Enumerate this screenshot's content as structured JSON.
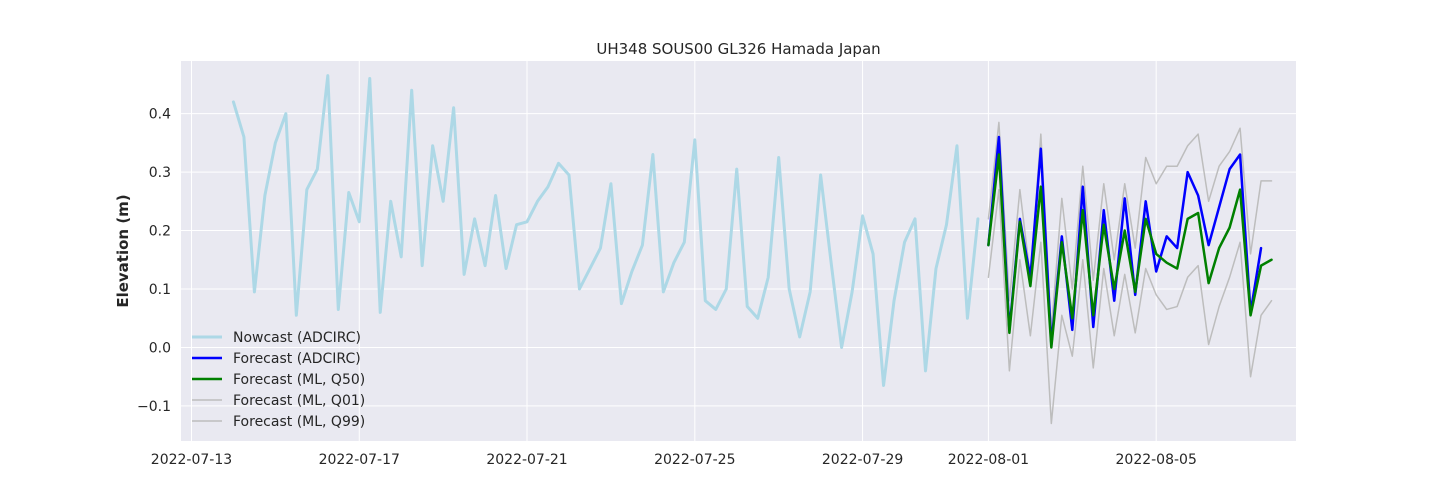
{
  "chart_data": {
    "type": "line",
    "title": "UH348 SOUS00 GL326 Hamada Japan",
    "xlabel": "",
    "ylabel": "Elevation (m)",
    "x_axis": {
      "type": "date",
      "min": "2022-07-12T18:00",
      "max": "2022-08-08T08:00",
      "ticks": [
        "2022-07-13",
        "2022-07-17",
        "2022-07-21",
        "2022-07-25",
        "2022-07-29",
        "2022-08-01",
        "2022-08-05"
      ]
    },
    "y_axis": {
      "min": -0.16,
      "max": 0.49,
      "ticks": [
        "−0.1",
        "0.0",
        "0.1",
        "0.2",
        "0.3",
        "0.4"
      ],
      "tick_values": [
        -0.1,
        0.0,
        0.1,
        0.2,
        0.3,
        0.4
      ]
    },
    "grid": true,
    "legend_position": "lower-left",
    "style": {
      "background": "#e9e9f1",
      "grid_color": "#ffffff",
      "text_color": "#262626"
    },
    "series": [
      {
        "name": "Nowcast (ADCIRC)",
        "color": "#add8e6",
        "line_width": 3,
        "x": [
          "2022-07-14T00:00",
          "2022-07-14T06:00",
          "2022-07-14T12:00",
          "2022-07-14T18:00",
          "2022-07-15T00:00",
          "2022-07-15T06:00",
          "2022-07-15T12:00",
          "2022-07-15T18:00",
          "2022-07-16T00:00",
          "2022-07-16T06:00",
          "2022-07-16T12:00",
          "2022-07-16T18:00",
          "2022-07-17T00:00",
          "2022-07-17T06:00",
          "2022-07-17T12:00",
          "2022-07-17T18:00",
          "2022-07-18T00:00",
          "2022-07-18T06:00",
          "2022-07-18T12:00",
          "2022-07-18T18:00",
          "2022-07-19T00:00",
          "2022-07-19T06:00",
          "2022-07-19T12:00",
          "2022-07-19T18:00",
          "2022-07-20T00:00",
          "2022-07-20T06:00",
          "2022-07-20T12:00",
          "2022-07-20T18:00",
          "2022-07-21T00:00",
          "2022-07-21T06:00",
          "2022-07-21T12:00",
          "2022-07-21T18:00",
          "2022-07-22T00:00",
          "2022-07-22T06:00",
          "2022-07-22T12:00",
          "2022-07-22T18:00",
          "2022-07-23T00:00",
          "2022-07-23T06:00",
          "2022-07-23T12:00",
          "2022-07-23T18:00",
          "2022-07-24T00:00",
          "2022-07-24T06:00",
          "2022-07-24T12:00",
          "2022-07-24T18:00",
          "2022-07-25T00:00",
          "2022-07-25T06:00",
          "2022-07-25T12:00",
          "2022-07-25T18:00",
          "2022-07-26T00:00",
          "2022-07-26T06:00",
          "2022-07-26T12:00",
          "2022-07-26T18:00",
          "2022-07-27T00:00",
          "2022-07-27T06:00",
          "2022-07-27T12:00",
          "2022-07-27T18:00",
          "2022-07-28T00:00",
          "2022-07-28T06:00",
          "2022-07-28T12:00",
          "2022-07-28T18:00",
          "2022-07-29T00:00",
          "2022-07-29T06:00",
          "2022-07-29T12:00",
          "2022-07-29T18:00",
          "2022-07-30T00:00",
          "2022-07-30T06:00",
          "2022-07-30T12:00",
          "2022-07-30T18:00",
          "2022-07-31T00:00",
          "2022-07-31T06:00",
          "2022-07-31T12:00",
          "2022-07-31T18:00"
        ],
        "y": [
          0.42,
          0.36,
          0.095,
          0.26,
          0.35,
          0.4,
          0.055,
          0.27,
          0.305,
          0.465,
          0.065,
          0.265,
          0.215,
          0.46,
          0.06,
          0.25,
          0.155,
          0.44,
          0.14,
          0.345,
          0.25,
          0.41,
          0.125,
          0.22,
          0.14,
          0.26,
          0.135,
          0.21,
          0.215,
          0.25,
          0.275,
          0.315,
          0.295,
          0.1,
          0.135,
          0.17,
          0.28,
          0.075,
          0.13,
          0.175,
          0.33,
          0.095,
          0.145,
          0.18,
          0.355,
          0.08,
          0.065,
          0.1,
          0.305,
          0.07,
          0.05,
          0.12,
          0.325,
          0.1,
          0.018,
          0.095,
          0.295,
          0.145,
          0.0,
          0.095,
          0.225,
          0.16,
          -0.065,
          0.08,
          0.18,
          0.22,
          -0.04,
          0.135,
          0.21,
          0.345,
          0.05,
          0.22
        ]
      },
      {
        "name": "Forecast (ADCIRC)",
        "color": "#0000ff",
        "line_width": 2.5,
        "x": [
          "2022-08-01T00:00",
          "2022-08-01T06:00",
          "2022-08-01T12:00",
          "2022-08-01T18:00",
          "2022-08-02T00:00",
          "2022-08-02T06:00",
          "2022-08-02T12:00",
          "2022-08-02T18:00",
          "2022-08-03T00:00",
          "2022-08-03T06:00",
          "2022-08-03T12:00",
          "2022-08-03T18:00",
          "2022-08-04T00:00",
          "2022-08-04T06:00",
          "2022-08-04T12:00",
          "2022-08-04T18:00",
          "2022-08-05T00:00",
          "2022-08-05T06:00",
          "2022-08-05T12:00",
          "2022-08-05T18:00",
          "2022-08-06T00:00",
          "2022-08-06T06:00",
          "2022-08-06T12:00",
          "2022-08-06T18:00",
          "2022-08-07T00:00",
          "2022-08-07T06:00",
          "2022-08-07T12:00"
        ],
        "y": [
          0.175,
          0.36,
          0.03,
          0.22,
          0.12,
          0.34,
          0.005,
          0.19,
          0.03,
          0.275,
          0.035,
          0.235,
          0.08,
          0.255,
          0.09,
          0.25,
          0.13,
          0.19,
          0.17,
          0.3,
          0.26,
          0.175,
          0.24,
          0.305,
          0.33,
          0.06,
          0.17
        ]
      },
      {
        "name": "Forecast (ML, Q50)",
        "color": "#008000",
        "line_width": 2.5,
        "x": [
          "2022-08-01T00:00",
          "2022-08-01T06:00",
          "2022-08-01T12:00",
          "2022-08-01T18:00",
          "2022-08-02T00:00",
          "2022-08-02T06:00",
          "2022-08-02T12:00",
          "2022-08-02T18:00",
          "2022-08-03T00:00",
          "2022-08-03T06:00",
          "2022-08-03T12:00",
          "2022-08-03T18:00",
          "2022-08-04T00:00",
          "2022-08-04T06:00",
          "2022-08-04T12:00",
          "2022-08-04T18:00",
          "2022-08-05T00:00",
          "2022-08-05T06:00",
          "2022-08-05T12:00",
          "2022-08-05T18:00",
          "2022-08-06T00:00",
          "2022-08-06T06:00",
          "2022-08-06T12:00",
          "2022-08-06T18:00",
          "2022-08-07T00:00",
          "2022-08-07T06:00",
          "2022-08-07T12:00",
          "2022-08-07T18:00"
        ],
        "y": [
          0.175,
          0.33,
          0.025,
          0.215,
          0.105,
          0.275,
          0.0,
          0.18,
          0.05,
          0.235,
          0.055,
          0.21,
          0.1,
          0.2,
          0.095,
          0.22,
          0.16,
          0.145,
          0.135,
          0.22,
          0.23,
          0.11,
          0.17,
          0.205,
          0.27,
          0.055,
          0.14,
          0.15
        ]
      },
      {
        "name": "Forecast (ML, Q01)",
        "color": "#bdbdbd",
        "line_width": 1.5,
        "x": [
          "2022-08-01T00:00",
          "2022-08-01T06:00",
          "2022-08-01T12:00",
          "2022-08-01T18:00",
          "2022-08-02T00:00",
          "2022-08-02T06:00",
          "2022-08-02T12:00",
          "2022-08-02T18:00",
          "2022-08-03T00:00",
          "2022-08-03T06:00",
          "2022-08-03T12:00",
          "2022-08-03T18:00",
          "2022-08-04T00:00",
          "2022-08-04T06:00",
          "2022-08-04T12:00",
          "2022-08-04T18:00",
          "2022-08-05T00:00",
          "2022-08-05T06:00",
          "2022-08-05T12:00",
          "2022-08-05T18:00",
          "2022-08-06T00:00",
          "2022-08-06T06:00",
          "2022-08-06T12:00",
          "2022-08-06T18:00",
          "2022-08-07T00:00",
          "2022-08-07T06:00",
          "2022-08-07T12:00",
          "2022-08-07T18:00"
        ],
        "y": [
          0.12,
          0.27,
          -0.04,
          0.15,
          0.02,
          0.18,
          -0.13,
          0.055,
          -0.015,
          0.15,
          -0.035,
          0.135,
          0.02,
          0.125,
          0.025,
          0.135,
          0.09,
          0.065,
          0.07,
          0.12,
          0.14,
          0.005,
          0.07,
          0.12,
          0.18,
          -0.05,
          0.055,
          0.08
        ]
      },
      {
        "name": "Forecast (ML, Q99)",
        "color": "#bdbdbd",
        "line_width": 1.5,
        "x": [
          "2022-08-01T00:00",
          "2022-08-01T06:00",
          "2022-08-01T12:00",
          "2022-08-01T18:00",
          "2022-08-02T00:00",
          "2022-08-02T06:00",
          "2022-08-02T12:00",
          "2022-08-02T18:00",
          "2022-08-03T00:00",
          "2022-08-03T06:00",
          "2022-08-03T12:00",
          "2022-08-03T18:00",
          "2022-08-04T00:00",
          "2022-08-04T06:00",
          "2022-08-04T12:00",
          "2022-08-04T18:00",
          "2022-08-05T00:00",
          "2022-08-05T06:00",
          "2022-08-05T12:00",
          "2022-08-05T18:00",
          "2022-08-06T00:00",
          "2022-08-06T06:00",
          "2022-08-06T12:00",
          "2022-08-06T18:00",
          "2022-08-07T00:00",
          "2022-08-07T06:00",
          "2022-08-07T12:00",
          "2022-08-07T18:00"
        ],
        "y": [
          0.22,
          0.385,
          0.08,
          0.27,
          0.12,
          0.365,
          0.03,
          0.255,
          0.1,
          0.31,
          0.115,
          0.28,
          0.15,
          0.28,
          0.17,
          0.325,
          0.28,
          0.31,
          0.31,
          0.345,
          0.365,
          0.25,
          0.31,
          0.335,
          0.375,
          0.16,
          0.285,
          0.285
        ]
      }
    ]
  }
}
